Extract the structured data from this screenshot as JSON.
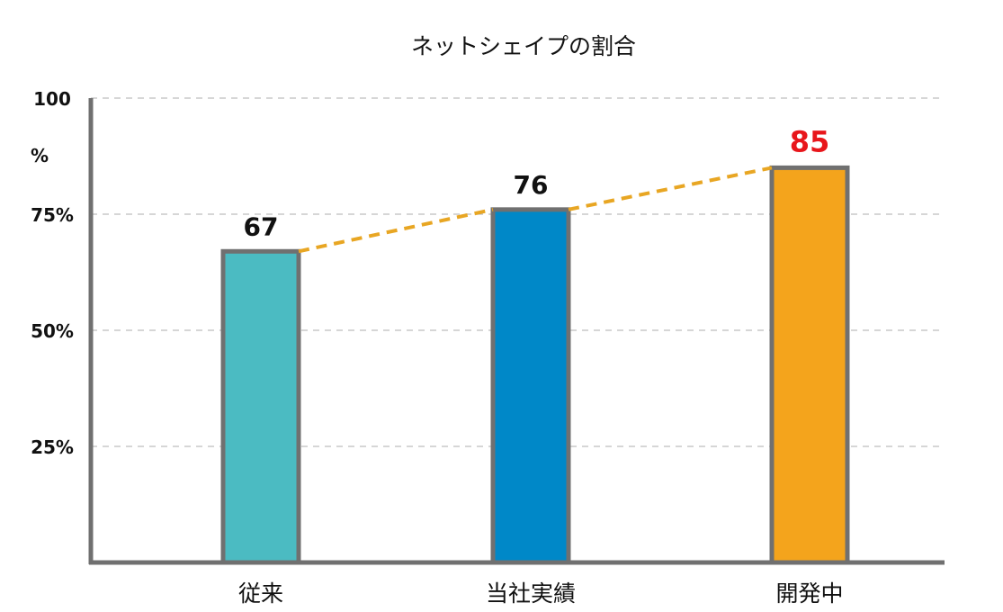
{
  "chart_data": {
    "type": "bar",
    "title": "ネットシェイプの割合",
    "categories": [
      "従来",
      "当社実績",
      "開発中"
    ],
    "values": [
      67,
      76,
      85
    ],
    "value_labels": [
      "67",
      "76",
      "85"
    ],
    "bar_colors": [
      "#4bbbc2",
      "#0088c8",
      "#f4a41c"
    ],
    "value_label_colors": [
      "#111111",
      "#111111",
      "#e8161b"
    ],
    "ylim": [
      0,
      100
    ],
    "y_ticks": [
      {
        "value": 25,
        "label": "25%"
      },
      {
        "value": 50,
        "label": "50%"
      },
      {
        "value": 75,
        "label": "75%"
      },
      {
        "value": 100,
        "label": "100"
      }
    ],
    "y_unit_label": "%",
    "trend_line": {
      "style": "dashed",
      "color": "#e8a623"
    },
    "grid": true,
    "colors": {
      "axis": "#707070",
      "grid": "#bdbdbd",
      "bar_border": "#707070"
    }
  }
}
